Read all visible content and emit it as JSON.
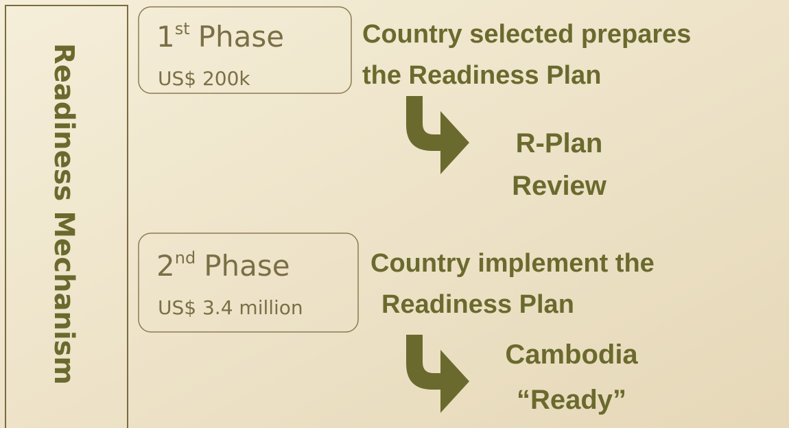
{
  "sidebar": {
    "title": "Readiness Mechanism"
  },
  "phases": [
    {
      "number": "1",
      "ordinal": "st",
      "label": "Phase",
      "amount": "US$ 200k",
      "description": [
        "Country selected prepares",
        "the Readiness Plan"
      ],
      "outcome": [
        "R-Plan",
        "Review"
      ]
    },
    {
      "number": "2",
      "ordinal": "nd",
      "label": "Phase",
      "amount": "US$ 3.4 million",
      "description": [
        "Country implement the",
        "Readiness Plan"
      ],
      "outcome": [
        "Cambodia",
        "“Ready”"
      ]
    }
  ]
}
